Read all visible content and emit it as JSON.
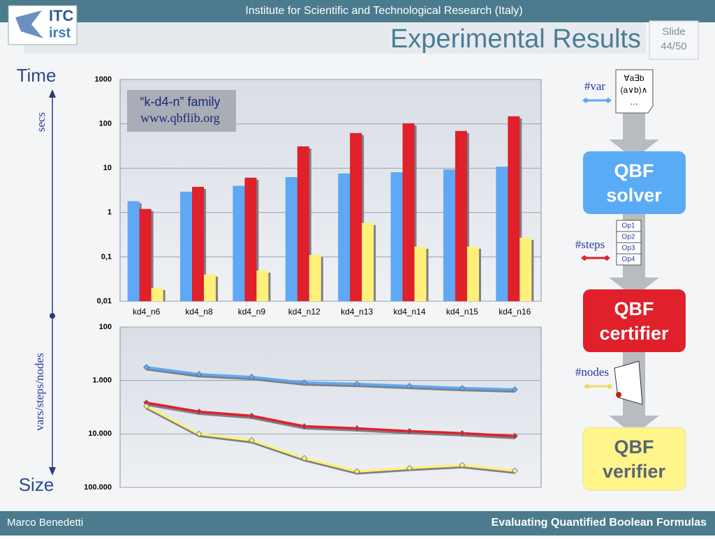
{
  "header": {
    "institute": "Institute for Scientific and Technological Research (Italy)",
    "title": "Experimental Results",
    "slide_label": "Slide",
    "slide_number": "44/50",
    "logo": [
      "ITC",
      "irst"
    ]
  },
  "axis_labels": {
    "time": "Time",
    "secs": "secs",
    "measure": "vars/steps/nodes",
    "size": "Size"
  },
  "diagram": {
    "var_label": "#var",
    "formula": [
      "∀a∃b",
      "(a∨b)∧",
      "…"
    ],
    "solver": [
      "QBF",
      "solver"
    ],
    "steps_label": "#steps",
    "ops": [
      "Op1",
      "Op2",
      "Op3",
      "Op4"
    ],
    "certifier": [
      "QBF",
      "certifier"
    ],
    "nodes_label": "#nodes",
    "verifier": [
      "QBF",
      "verifier"
    ]
  },
  "footer": {
    "author": "Marco Benedetti",
    "talk": "Evaluating Quantified Boolean Formulas"
  },
  "chart_data": [
    {
      "type": "bar",
      "log_scale": true,
      "grid": true,
      "annotation": [
        "“k-d4-n” family",
        "www.qbflib.org"
      ],
      "categories": [
        "kd4_n6",
        "kd4_n8",
        "kd4_n9",
        "kd4_n12",
        "kd4_n13",
        "kd4_n14",
        "kd4_n15",
        "kd4_n16"
      ],
      "series": [
        {
          "color": "#5ea8f5",
          "values": [
            1.8,
            2.95,
            4,
            6.3,
            7.6,
            8.1,
            9.4,
            10.8
          ]
        },
        {
          "color": "#e0202a",
          "values": [
            1.2,
            3.8,
            6.1,
            31,
            62,
            103,
            69,
            148
          ]
        },
        {
          "color": "#fff07a",
          "values": [
            0.02,
            0.04,
            0.049,
            0.11,
            0.58,
            0.17,
            0.17,
            0.27
          ]
        }
      ],
      "ylim": [
        0.01,
        1000
      ],
      "yticks": [
        1000,
        100,
        10,
        1,
        {
          "value": 0.1,
          "label": "0,1"
        },
        {
          "value": 0.01,
          "label": "0,01"
        }
      ]
    },
    {
      "type": "line",
      "log_scale": true,
      "grid": true,
      "categories": [
        null,
        null,
        null,
        null,
        null,
        null,
        null,
        null
      ],
      "series": [
        {
          "color": "#5ea8f5",
          "values": [
            566,
            764,
            861,
            1094,
            1161,
            1270,
            1390,
            1475
          ]
        },
        {
          "color": "#e0202a",
          "values": [
            2605,
            3840,
            4590,
            7200,
            7870,
            8870,
            9700,
            10940
          ]
        },
        {
          "color": "#fff07a",
          "values": [
            3025,
            10000,
            13100,
            28500,
            50200,
            43300,
            38400,
            48800
          ]
        }
      ],
      "ylim": [
        100000,
        100
      ],
      "yticks": [
        100,
        {
          "value": 1000,
          "label": "1.000"
        },
        {
          "value": 10000,
          "label": "10.000"
        },
        {
          "value": 100000,
          "label": "100.000"
        }
      ]
    }
  ]
}
